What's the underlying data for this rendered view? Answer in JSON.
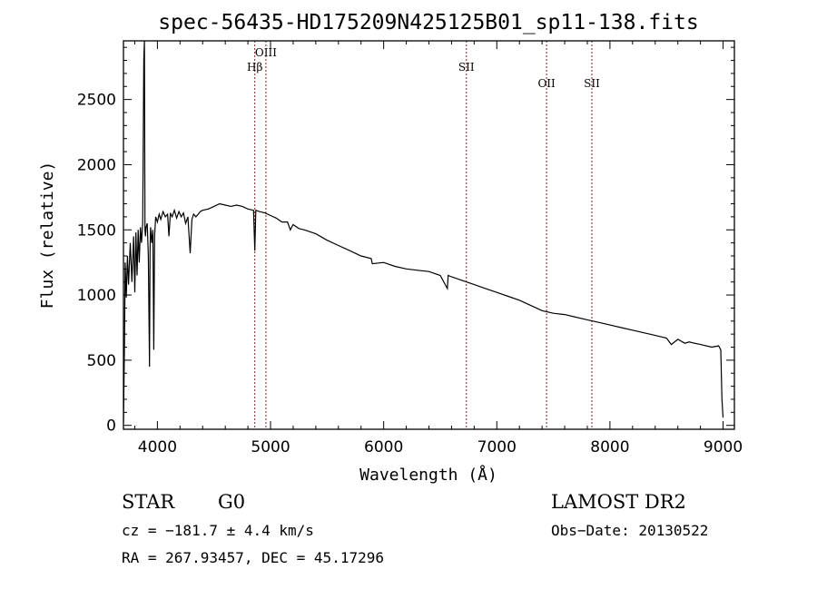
{
  "chart_data": {
    "type": "line",
    "title": "spec-56435-HD175209N425125B01_sp11-138.fits",
    "xlabel": "Wavelength (Å)",
    "ylabel": "Flux (relative)",
    "xlim": [
      3700,
      9100
    ],
    "ylim": [
      -30,
      2950
    ],
    "xticks": [
      4000,
      5000,
      6000,
      7000,
      8000,
      9000
    ],
    "yticks": [
      0,
      500,
      1000,
      1500,
      2000,
      2500
    ],
    "grid": false,
    "lines": [
      {
        "name": "Hβ",
        "x": 4861
      },
      {
        "name": "OIII",
        "x": 4959
      },
      {
        "name": "SII",
        "x": 6731
      },
      {
        "name": "OII",
        "x": 7440
      },
      {
        "name": "SII",
        "x": 7840
      }
    ],
    "series": [
      {
        "x": [
          3700,
          3710,
          3715,
          3725,
          3735,
          3745,
          3760,
          3775,
          3790,
          3800,
          3810,
          3820,
          3830,
          3840,
          3850,
          3860,
          3870,
          3880,
          3885,
          3890,
          3895,
          3900,
          3910,
          3920,
          3930,
          3935,
          3940,
          3950,
          3960,
          3968,
          3975,
          3985,
          4000,
          4015,
          4030,
          4050,
          4070,
          4090,
          4102,
          4115,
          4130,
          4150,
          4170,
          4190,
          4210,
          4230,
          4250,
          4270,
          4290,
          4305,
          4320,
          4340,
          4360,
          4380,
          4400,
          4450,
          4500,
          4550,
          4600,
          4650,
          4700,
          4750,
          4800,
          4850,
          4861,
          4870,
          4900,
          4950,
          5000,
          5050,
          5100,
          5150,
          5175,
          5200,
          5250,
          5300,
          5400,
          5500,
          5600,
          5700,
          5800,
          5890,
          5900,
          6000,
          6100,
          6200,
          6300,
          6400,
          6500,
          6563,
          6570,
          6600,
          6700,
          6800,
          6900,
          7000,
          7100,
          7200,
          7300,
          7400,
          7500,
          7600,
          7700,
          7800,
          7900,
          8000,
          8100,
          8200,
          8300,
          8400,
          8500,
          8542,
          8600,
          8662,
          8700,
          8800,
          8900,
          8960,
          8980,
          8990,
          9000
        ],
        "values": [
          20,
          650,
          1250,
          980,
          1300,
          1080,
          1400,
          1100,
          1450,
          1020,
          1480,
          1150,
          1500,
          1250,
          1520,
          1400,
          1550,
          2800,
          2950,
          1500,
          1450,
          1520,
          1550,
          1300,
          450,
          1350,
          1520,
          1400,
          1500,
          580,
          1450,
          1600,
          1560,
          1620,
          1580,
          1640,
          1600,
          1620,
          1450,
          1630,
          1600,
          1650,
          1590,
          1640,
          1600,
          1630,
          1550,
          1600,
          1320,
          1580,
          1620,
          1600,
          1620,
          1640,
          1650,
          1660,
          1680,
          1700,
          1690,
          1680,
          1690,
          1680,
          1660,
          1650,
          1340,
          1650,
          1640,
          1630,
          1610,
          1590,
          1560,
          1560,
          1500,
          1540,
          1510,
          1500,
          1470,
          1420,
          1380,
          1340,
          1300,
          1280,
          1240,
          1250,
          1220,
          1200,
          1190,
          1180,
          1150,
          1050,
          1150,
          1140,
          1110,
          1080,
          1050,
          1020,
          990,
          960,
          920,
          880,
          860,
          850,
          830,
          810,
          790,
          770,
          750,
          730,
          710,
          690,
          670,
          620,
          660,
          630,
          640,
          620,
          600,
          610,
          580,
          200,
          60
        ]
      }
    ]
  },
  "footer": {
    "object_type": "STAR",
    "subclass": "G0",
    "survey": "LAMOST DR2",
    "cz": "cz = −181.7 ± 4.4 km/s",
    "obs_date": "Obs−Date: 20130522",
    "coords": "RA = 267.93457, DEC =  45.17296"
  },
  "colors": {
    "line_marker": "#8b1a1a",
    "spectrum": "#000000"
  }
}
